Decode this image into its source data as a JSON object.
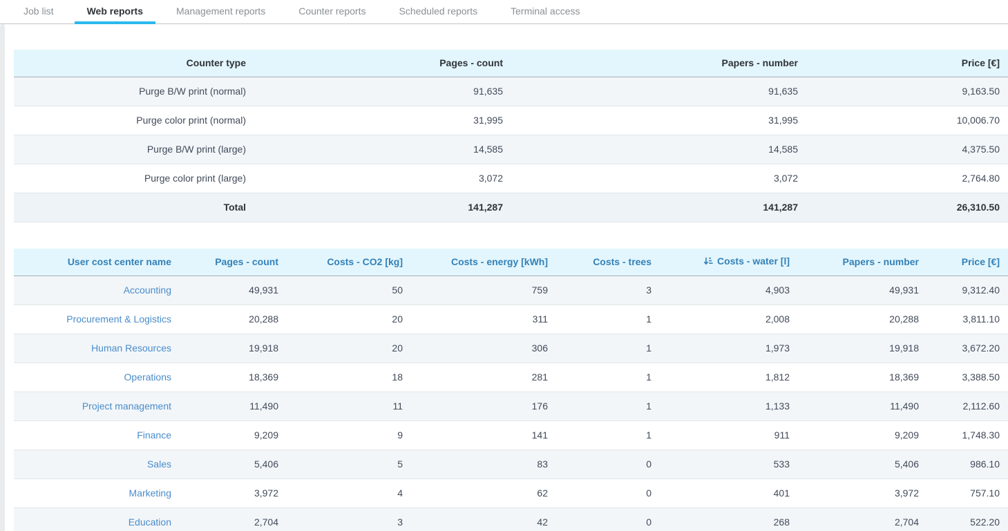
{
  "colors": {
    "accent": "#29b9ec",
    "tab_active_text": "#2f3337",
    "tab_inactive_text": "#8b9094",
    "table_header_bg": "#e3f6fd",
    "shaded_row_bg": "#f2f6f9",
    "blue_header_text": "#3381b8",
    "link_text": "#4a8ccb"
  },
  "tabs": {
    "items": [
      {
        "label": "Job list",
        "active": false
      },
      {
        "label": "Web reports",
        "active": true
      },
      {
        "label": "Management reports",
        "active": false
      },
      {
        "label": "Counter reports",
        "active": false
      },
      {
        "label": "Scheduled reports",
        "active": false
      },
      {
        "label": "Terminal access",
        "active": false
      }
    ]
  },
  "counter_table": {
    "columns": [
      "Counter type",
      "Pages - count",
      "Papers - number",
      "Price [€]"
    ],
    "rows": [
      [
        "Purge B/W print (normal)",
        "91,635",
        "91,635",
        "9,163.50"
      ],
      [
        "Purge color print (normal)",
        "31,995",
        "31,995",
        "10,006.70"
      ],
      [
        "Purge B/W print (large)",
        "14,585",
        "14,585",
        "4,375.50"
      ],
      [
        "Purge color print (large)",
        "3,072",
        "3,072",
        "2,764.80"
      ]
    ],
    "total_row": [
      "Total",
      "141,287",
      "141,287",
      "26,310.50"
    ]
  },
  "cost_center_table": {
    "columns": [
      "User cost center name",
      "Pages - count",
      "Costs - CO2 [kg]",
      "Costs - energy [kWh]",
      "Costs - trees",
      "Costs - water [l]",
      "Papers - number",
      "Price [€]"
    ],
    "sorted_column_index": 5,
    "sorted_direction": "descending",
    "rows": [
      [
        "Accounting",
        "49,931",
        "50",
        "759",
        "3",
        "4,903",
        "49,931",
        "9,312.40"
      ],
      [
        "Procurement & Logistics",
        "20,288",
        "20",
        "311",
        "1",
        "2,008",
        "20,288",
        "3,811.10"
      ],
      [
        "Human Resources",
        "19,918",
        "20",
        "306",
        "1",
        "1,973",
        "19,918",
        "3,672.20"
      ],
      [
        "Operations",
        "18,369",
        "18",
        "281",
        "1",
        "1,812",
        "18,369",
        "3,388.50"
      ],
      [
        "Project management",
        "11,490",
        "11",
        "176",
        "1",
        "1,133",
        "11,490",
        "2,112.60"
      ],
      [
        "Finance",
        "9,209",
        "9",
        "141",
        "1",
        "911",
        "9,209",
        "1,748.30"
      ],
      [
        "Sales",
        "5,406",
        "5",
        "83",
        "0",
        "533",
        "5,406",
        "986.10"
      ],
      [
        "Marketing",
        "3,972",
        "4",
        "62",
        "0",
        "401",
        "3,972",
        "757.10"
      ],
      [
        "Education",
        "2,704",
        "3",
        "42",
        "0",
        "268",
        "2,704",
        "522.20"
      ]
    ]
  }
}
